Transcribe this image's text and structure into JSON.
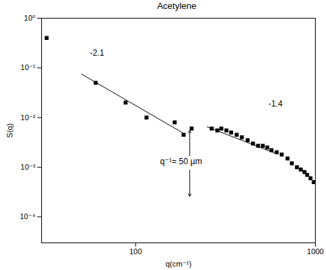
{
  "chart_data": {
    "type": "scatter",
    "title": "Acetylene",
    "x_label": "q(cm⁻¹)",
    "y_label": "S(q)",
    "log": true,
    "xlim": [
      30,
      1000
    ],
    "ylim": [
      3e-05,
      1
    ],
    "xticks": [
      100,
      1000
    ],
    "yticks": [
      {
        "value": 1,
        "label": "10⁰"
      },
      {
        "value": 0.1,
        "label": "10⁻¹"
      },
      {
        "value": 0.01,
        "label": "10⁻²"
      },
      {
        "value": 0.001,
        "label": "10⁻³"
      },
      {
        "value": 0.0001,
        "label": "10⁻⁴"
      }
    ],
    "series": [
      {
        "type": "scatter",
        "marker": "square",
        "color": "#000000",
        "x": [
          32,
          60,
          88,
          115,
          165,
          185,
          205,
          265,
          285,
          300,
          320,
          340,
          365,
          390,
          420,
          450,
          480,
          510,
          540,
          570,
          610,
          650,
          700,
          740,
          790,
          830,
          870,
          900,
          940,
          980,
          1000
        ],
        "values": [
          0.4,
          0.05,
          0.02,
          0.01,
          0.008,
          0.0045,
          0.006,
          0.006,
          0.0055,
          0.006,
          0.0055,
          0.005,
          0.0045,
          0.004,
          0.0035,
          0.003,
          0.0027,
          0.0027,
          0.0025,
          0.0022,
          0.002,
          0.0018,
          0.0015,
          0.0012,
          0.001,
          0.0009,
          0.0008,
          0.0007,
          0.0006,
          0.0005,
          0.0005
        ]
      },
      {
        "type": "line",
        "line_style": "solid",
        "color": "#000000",
        "x": [
          50,
          185
        ],
        "values": [
          0.075,
          0.0048
        ]
      },
      {
        "type": "line",
        "line_style": "solid",
        "color": "#000000",
        "x": [
          250,
          600
        ],
        "values": [
          0.0065,
          0.0019
        ]
      }
    ],
    "annotations": [
      {
        "text": "-2.1",
        "x": 61,
        "y": 0.2
      },
      {
        "text": "-1.4",
        "x": 600,
        "y": 0.019
      },
      {
        "text": "q⁻¹= 50 µm",
        "x": 179,
        "y": 0.0013
      }
    ],
    "arrows": [
      {
        "x": 200,
        "from": 0.0017,
        "to": 0.0055
      },
      {
        "x": 200,
        "from": 0.00088,
        "to": 0.00026
      }
    ]
  }
}
